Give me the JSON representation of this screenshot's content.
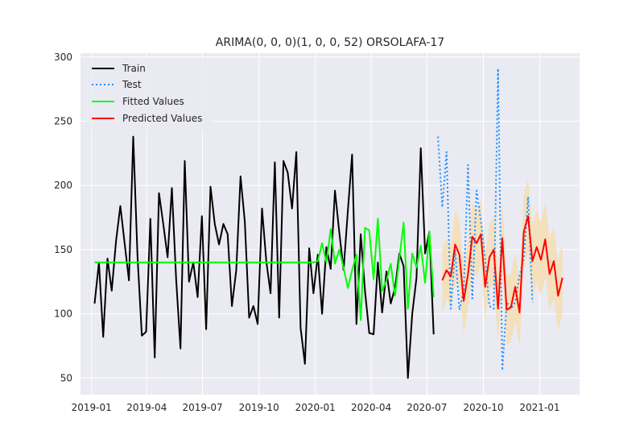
{
  "chart_data": {
    "type": "line",
    "title": "ARIMA(0, 0, 0)(1, 0, 0, 52) ORSOLAFA-17",
    "xlabel": "",
    "ylabel": "",
    "ylim": [
      37,
      303
    ],
    "xlim": [
      "2018-12-14",
      "2021-03-07"
    ],
    "y_ticks": [
      50,
      100,
      150,
      200,
      250,
      300
    ],
    "x_ticks": [
      {
        "date": "2019-01-01",
        "label": "2019-01"
      },
      {
        "date": "2019-04-01",
        "label": "2019-04"
      },
      {
        "date": "2019-07-01",
        "label": "2019-07"
      },
      {
        "date": "2019-10-01",
        "label": "2019-10"
      },
      {
        "date": "2020-01-01",
        "label": "2020-01"
      },
      {
        "date": "2020-04-01",
        "label": "2020-04"
      },
      {
        "date": "2020-07-01",
        "label": "2020-07"
      },
      {
        "date": "2020-10-01",
        "label": "2020-10"
      },
      {
        "date": "2021-01-01",
        "label": "2021-01"
      }
    ],
    "grid": true,
    "background": "#eaeaf2",
    "legend_position": "top-left",
    "series": [
      {
        "name": "Train",
        "color": "#000000",
        "style": "solid",
        "start": "2019-01-06",
        "values": [
          108,
          140,
          82,
          143,
          118,
          157,
          184,
          155,
          126,
          238,
          145,
          83,
          86,
          174,
          66,
          194,
          170,
          144,
          198,
          127,
          73,
          219,
          125,
          140,
          113,
          176,
          88,
          199,
          170,
          154,
          170,
          162,
          106,
          134,
          207,
          172,
          97,
          106,
          92,
          182,
          141,
          116,
          218,
          97,
          219,
          210,
          182,
          226,
          89,
          61,
          151,
          116,
          146,
          100,
          152,
          135,
          196,
          164,
          134,
          180,
          224,
          92,
          162,
          118,
          85,
          84,
          140,
          101,
          133,
          108,
          120,
          147,
          137,
          50,
          100,
          128,
          229,
          147,
          164,
          84
        ]
      },
      {
        "name": "Test",
        "color": "#1e90ff",
        "style": "dotted",
        "start": "2020-07-19",
        "values": [
          238,
          183,
          226,
          104,
          150,
          103,
          118,
          216,
          112,
          196,
          172,
          142,
          106,
          104,
          291,
          56,
          109,
          104,
          109,
          130,
          143,
          191,
          109
        ]
      },
      {
        "name": "Fitted Values",
        "color": "#00ff00",
        "style": "solid",
        "start": "2019-01-06",
        "values": [
          140,
          140,
          140,
          140,
          140,
          140,
          140,
          140,
          140,
          140,
          140,
          140,
          140,
          140,
          140,
          140,
          140,
          140,
          140,
          140,
          140,
          140,
          140,
          140,
          140,
          140,
          140,
          140,
          140,
          140,
          140,
          140,
          140,
          140,
          140,
          140,
          140,
          140,
          140,
          140,
          140,
          140,
          140,
          140,
          140,
          140,
          140,
          140,
          140,
          140,
          140,
          140,
          141,
          155,
          140,
          166,
          139,
          150,
          136,
          120,
          134,
          146,
          95,
          167,
          165,
          127,
          174,
          118,
          126,
          139,
          114,
          143,
          171,
          104,
          147,
          136,
          153,
          124,
          164,
          113
        ]
      },
      {
        "name": "Predicted Values",
        "color": "#ff0000",
        "style": "solid",
        "start": "2020-07-26",
        "values": [
          126,
          134,
          129,
          154,
          146,
          110,
          131,
          160,
          155,
          162,
          121,
          144,
          150,
          104,
          159,
          103,
          105,
          121,
          101,
          164,
          176,
          141,
          152,
          142,
          158,
          131,
          141,
          114,
          128
        ]
      }
    ],
    "confidence_band": {
      "color": "#f5deb3",
      "start": "2020-07-26",
      "lower": [
        101,
        112,
        104,
        124,
        121,
        84,
        104,
        134,
        128,
        138,
        96,
        118,
        124,
        78,
        134,
        76,
        78,
        94,
        75,
        136,
        148,
        112,
        124,
        114,
        129,
        103,
        112,
        86,
        101
      ],
      "upper": [
        152,
        158,
        153,
        181,
        172,
        135,
        157,
        186,
        181,
        188,
        146,
        170,
        176,
        130,
        186,
        130,
        131,
        147,
        127,
        193,
        205,
        170,
        181,
        171,
        186,
        159,
        168,
        142,
        155
      ]
    }
  }
}
